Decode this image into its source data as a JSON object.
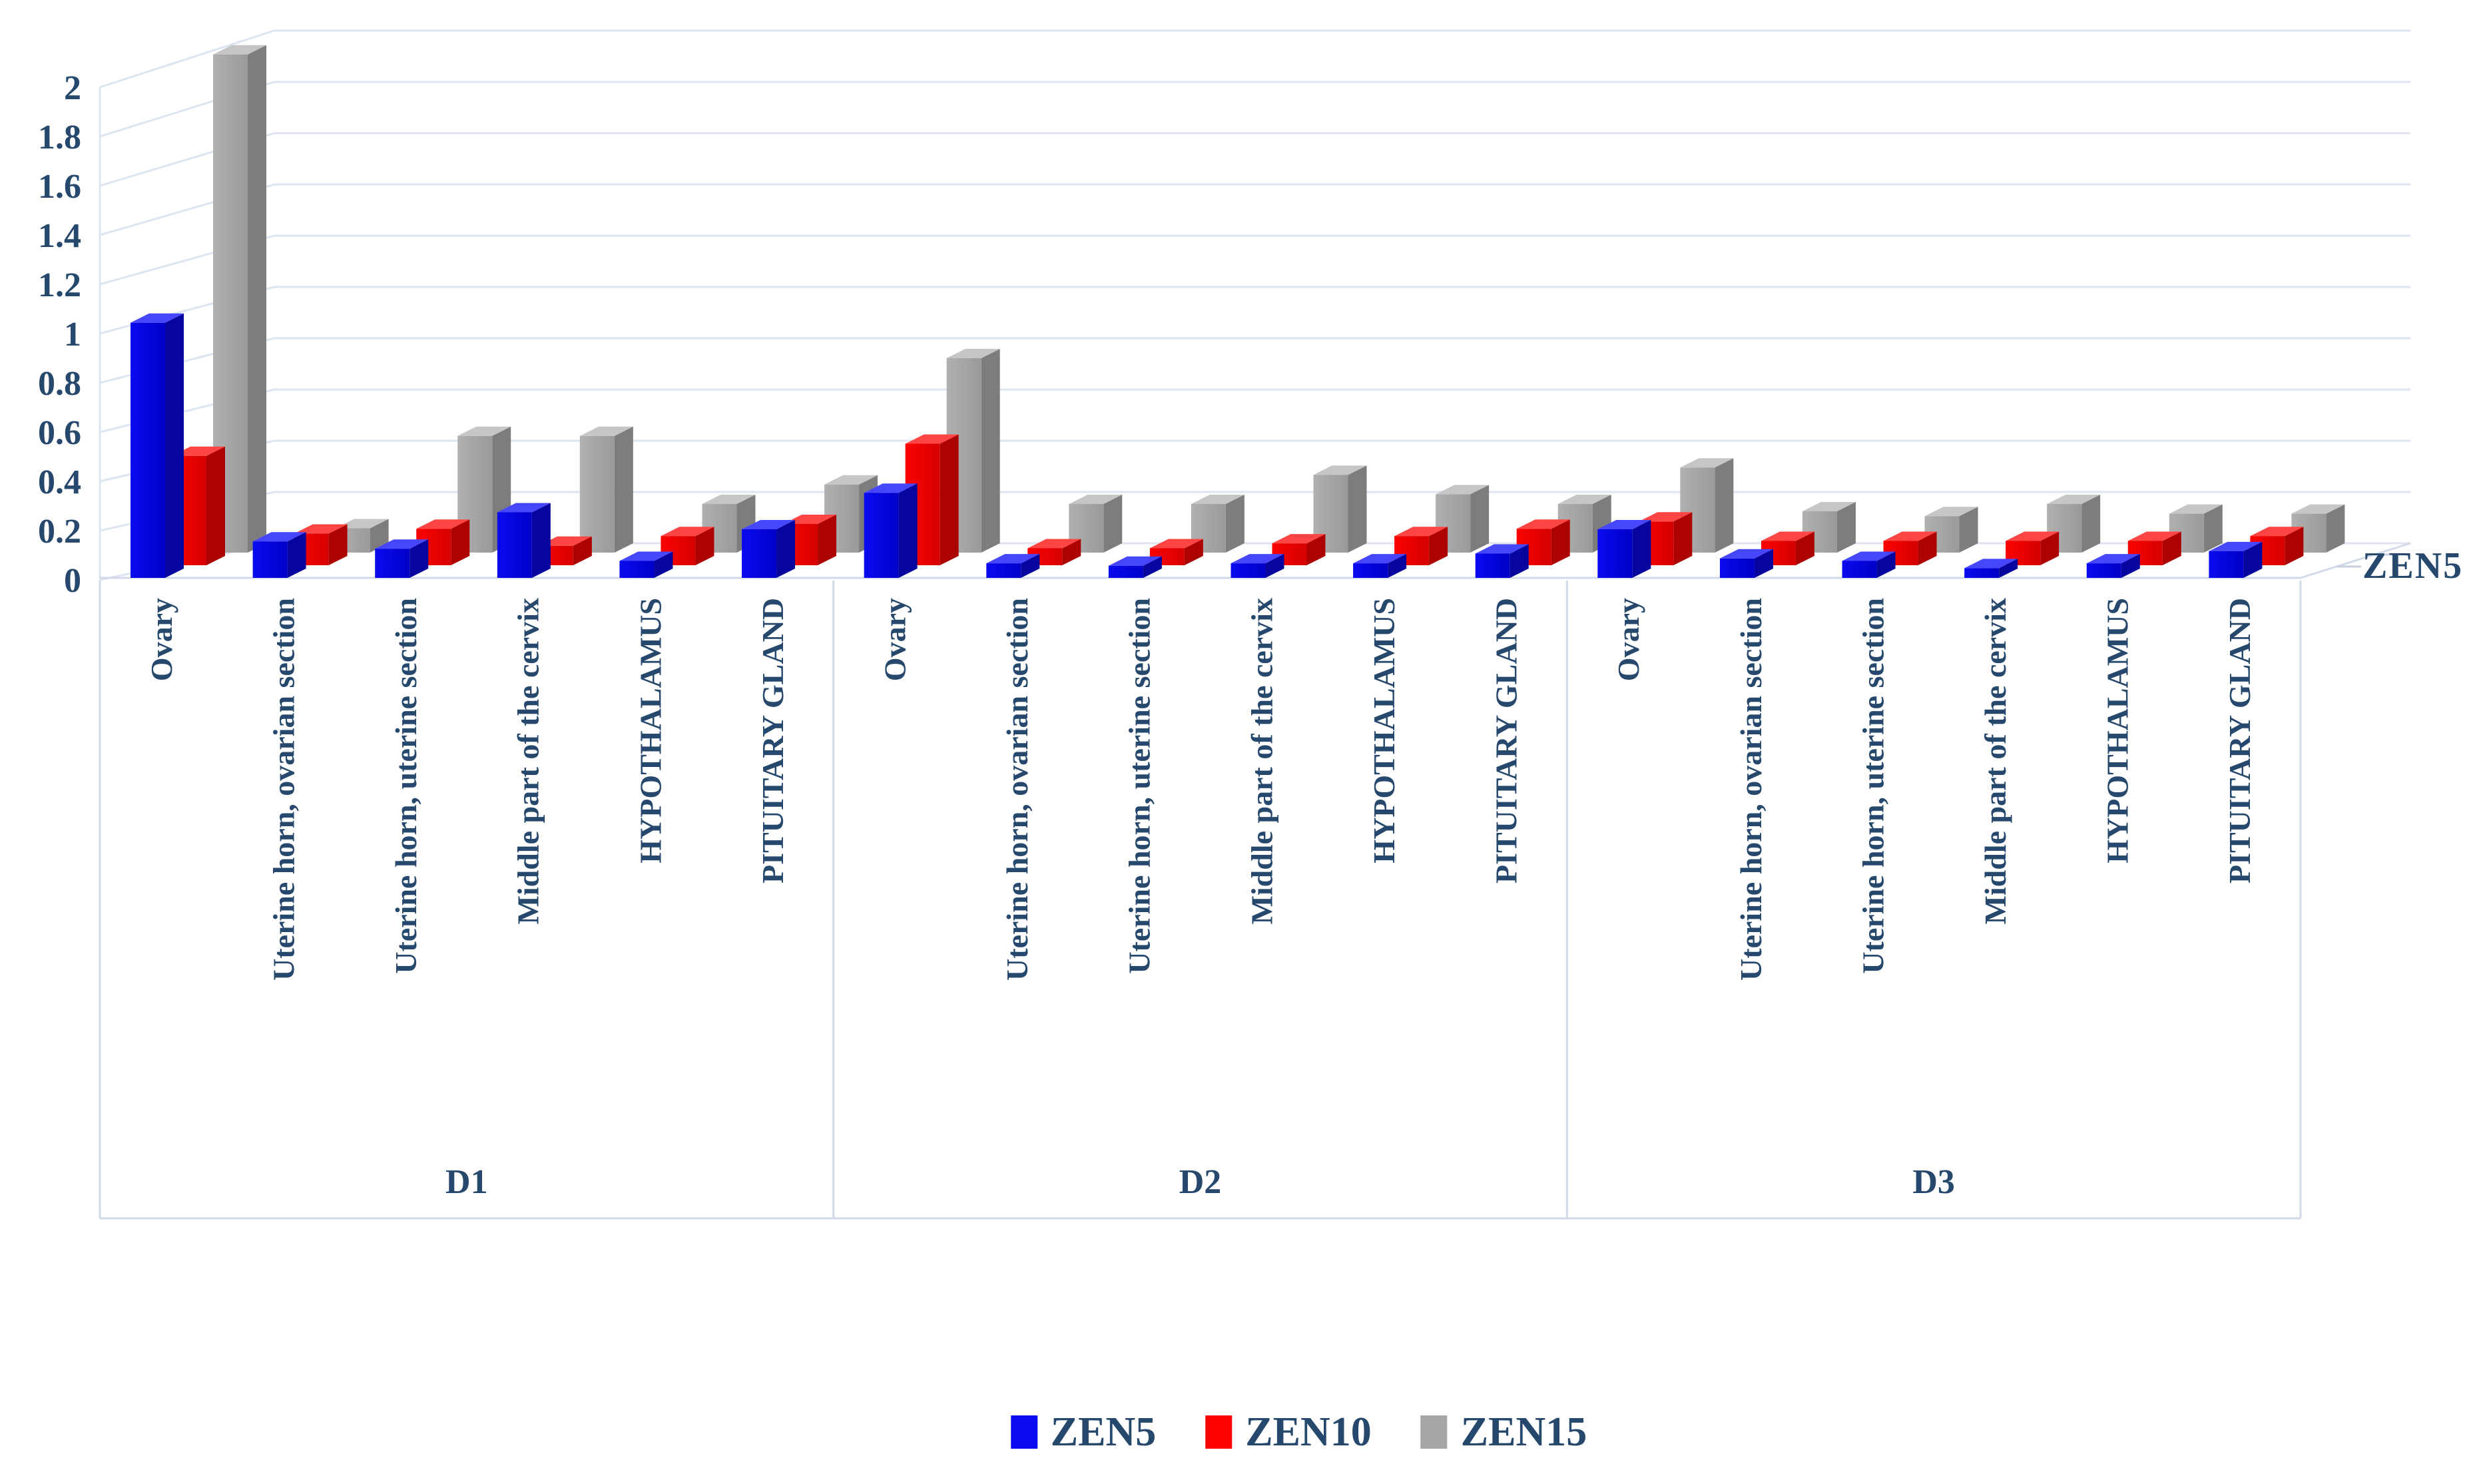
{
  "chart_data": {
    "type": "bar",
    "projection": "3d",
    "title": "",
    "xlabel": "",
    "ylabel": "",
    "ylim": [
      0,
      2
    ],
    "ytick_step": 0.2,
    "ytick_labels": [
      "0",
      "0.2",
      "0.4",
      "0.6",
      "0.8",
      "1",
      "1.2",
      "1.4",
      "1.6",
      "1.8",
      "2"
    ],
    "grid": "on",
    "legend_position": "bottom",
    "depth_axis_label": "ZEN5",
    "series_names": [
      "ZEN5",
      "ZEN10",
      "ZEN15"
    ],
    "legend": [
      {
        "label": "ZEN5",
        "color": "#0a0af0"
      },
      {
        "label": "ZEN10",
        "color": "#fb0200"
      },
      {
        "label": "ZEN15",
        "color": "#a6a6a6"
      }
    ],
    "colors": {
      "ZEN5": {
        "front": "#0a0af0",
        "front2": "#0000c8",
        "top": "#4646fa",
        "side": "#06069e"
      },
      "ZEN10": {
        "front": "#fb0200",
        "front2": "#d40100",
        "top": "#fd4543",
        "side": "#ad0300"
      },
      "ZEN15": {
        "front": "#b0b0b0",
        "front2": "#9a9a9a",
        "top": "#c6c6c6",
        "side": "#7d7d7d"
      }
    },
    "text_color": "#26486c",
    "gridline_color": "#dde4f2",
    "groups": [
      {
        "label": "D1",
        "categories": [
          "Ovary",
          "Uterine horn, ovarian section",
          "Uterine horn, uterine section",
          "Middle part of the cervix",
          "HYPOTHALAMUS",
          "PITUITARY GLAND"
        ],
        "values": {
          "ZEN5": [
            1.05,
            0.15,
            0.12,
            0.27,
            0.07,
            0.2
          ],
          "ZEN10": [
            0.45,
            0.13,
            0.15,
            0.08,
            0.12,
            0.17
          ],
          "ZEN15": [
            2.05,
            0.1,
            0.48,
            0.48,
            0.2,
            0.28
          ]
        }
      },
      {
        "label": "D2",
        "categories": [
          "Ovary",
          "Uterine horn, ovarian section",
          "Uterine horn, uterine section",
          "Middle part of the cervix",
          "HYPOTHALAMUS",
          "PITUITARY GLAND"
        ],
        "values": {
          "ZEN5": [
            0.35,
            0.06,
            0.05,
            0.06,
            0.06,
            0.1
          ],
          "ZEN10": [
            0.5,
            0.07,
            0.07,
            0.09,
            0.12,
            0.15
          ],
          "ZEN15": [
            0.8,
            0.2,
            0.2,
            0.32,
            0.24,
            0.2
          ]
        }
      },
      {
        "label": "D3",
        "categories": [
          "Ovary",
          "Uterine horn, ovarian section",
          "Uterine horn, uterine section",
          "Middle part of the cervix",
          "HYPOTHALAMUS",
          "PITUITARY GLAND"
        ],
        "values": {
          "ZEN5": [
            0.2,
            0.08,
            0.07,
            0.04,
            0.06,
            0.11
          ],
          "ZEN10": [
            0.18,
            0.1,
            0.1,
            0.1,
            0.1,
            0.12
          ],
          "ZEN15": [
            0.35,
            0.17,
            0.15,
            0.2,
            0.16,
            0.16
          ]
        }
      }
    ]
  }
}
